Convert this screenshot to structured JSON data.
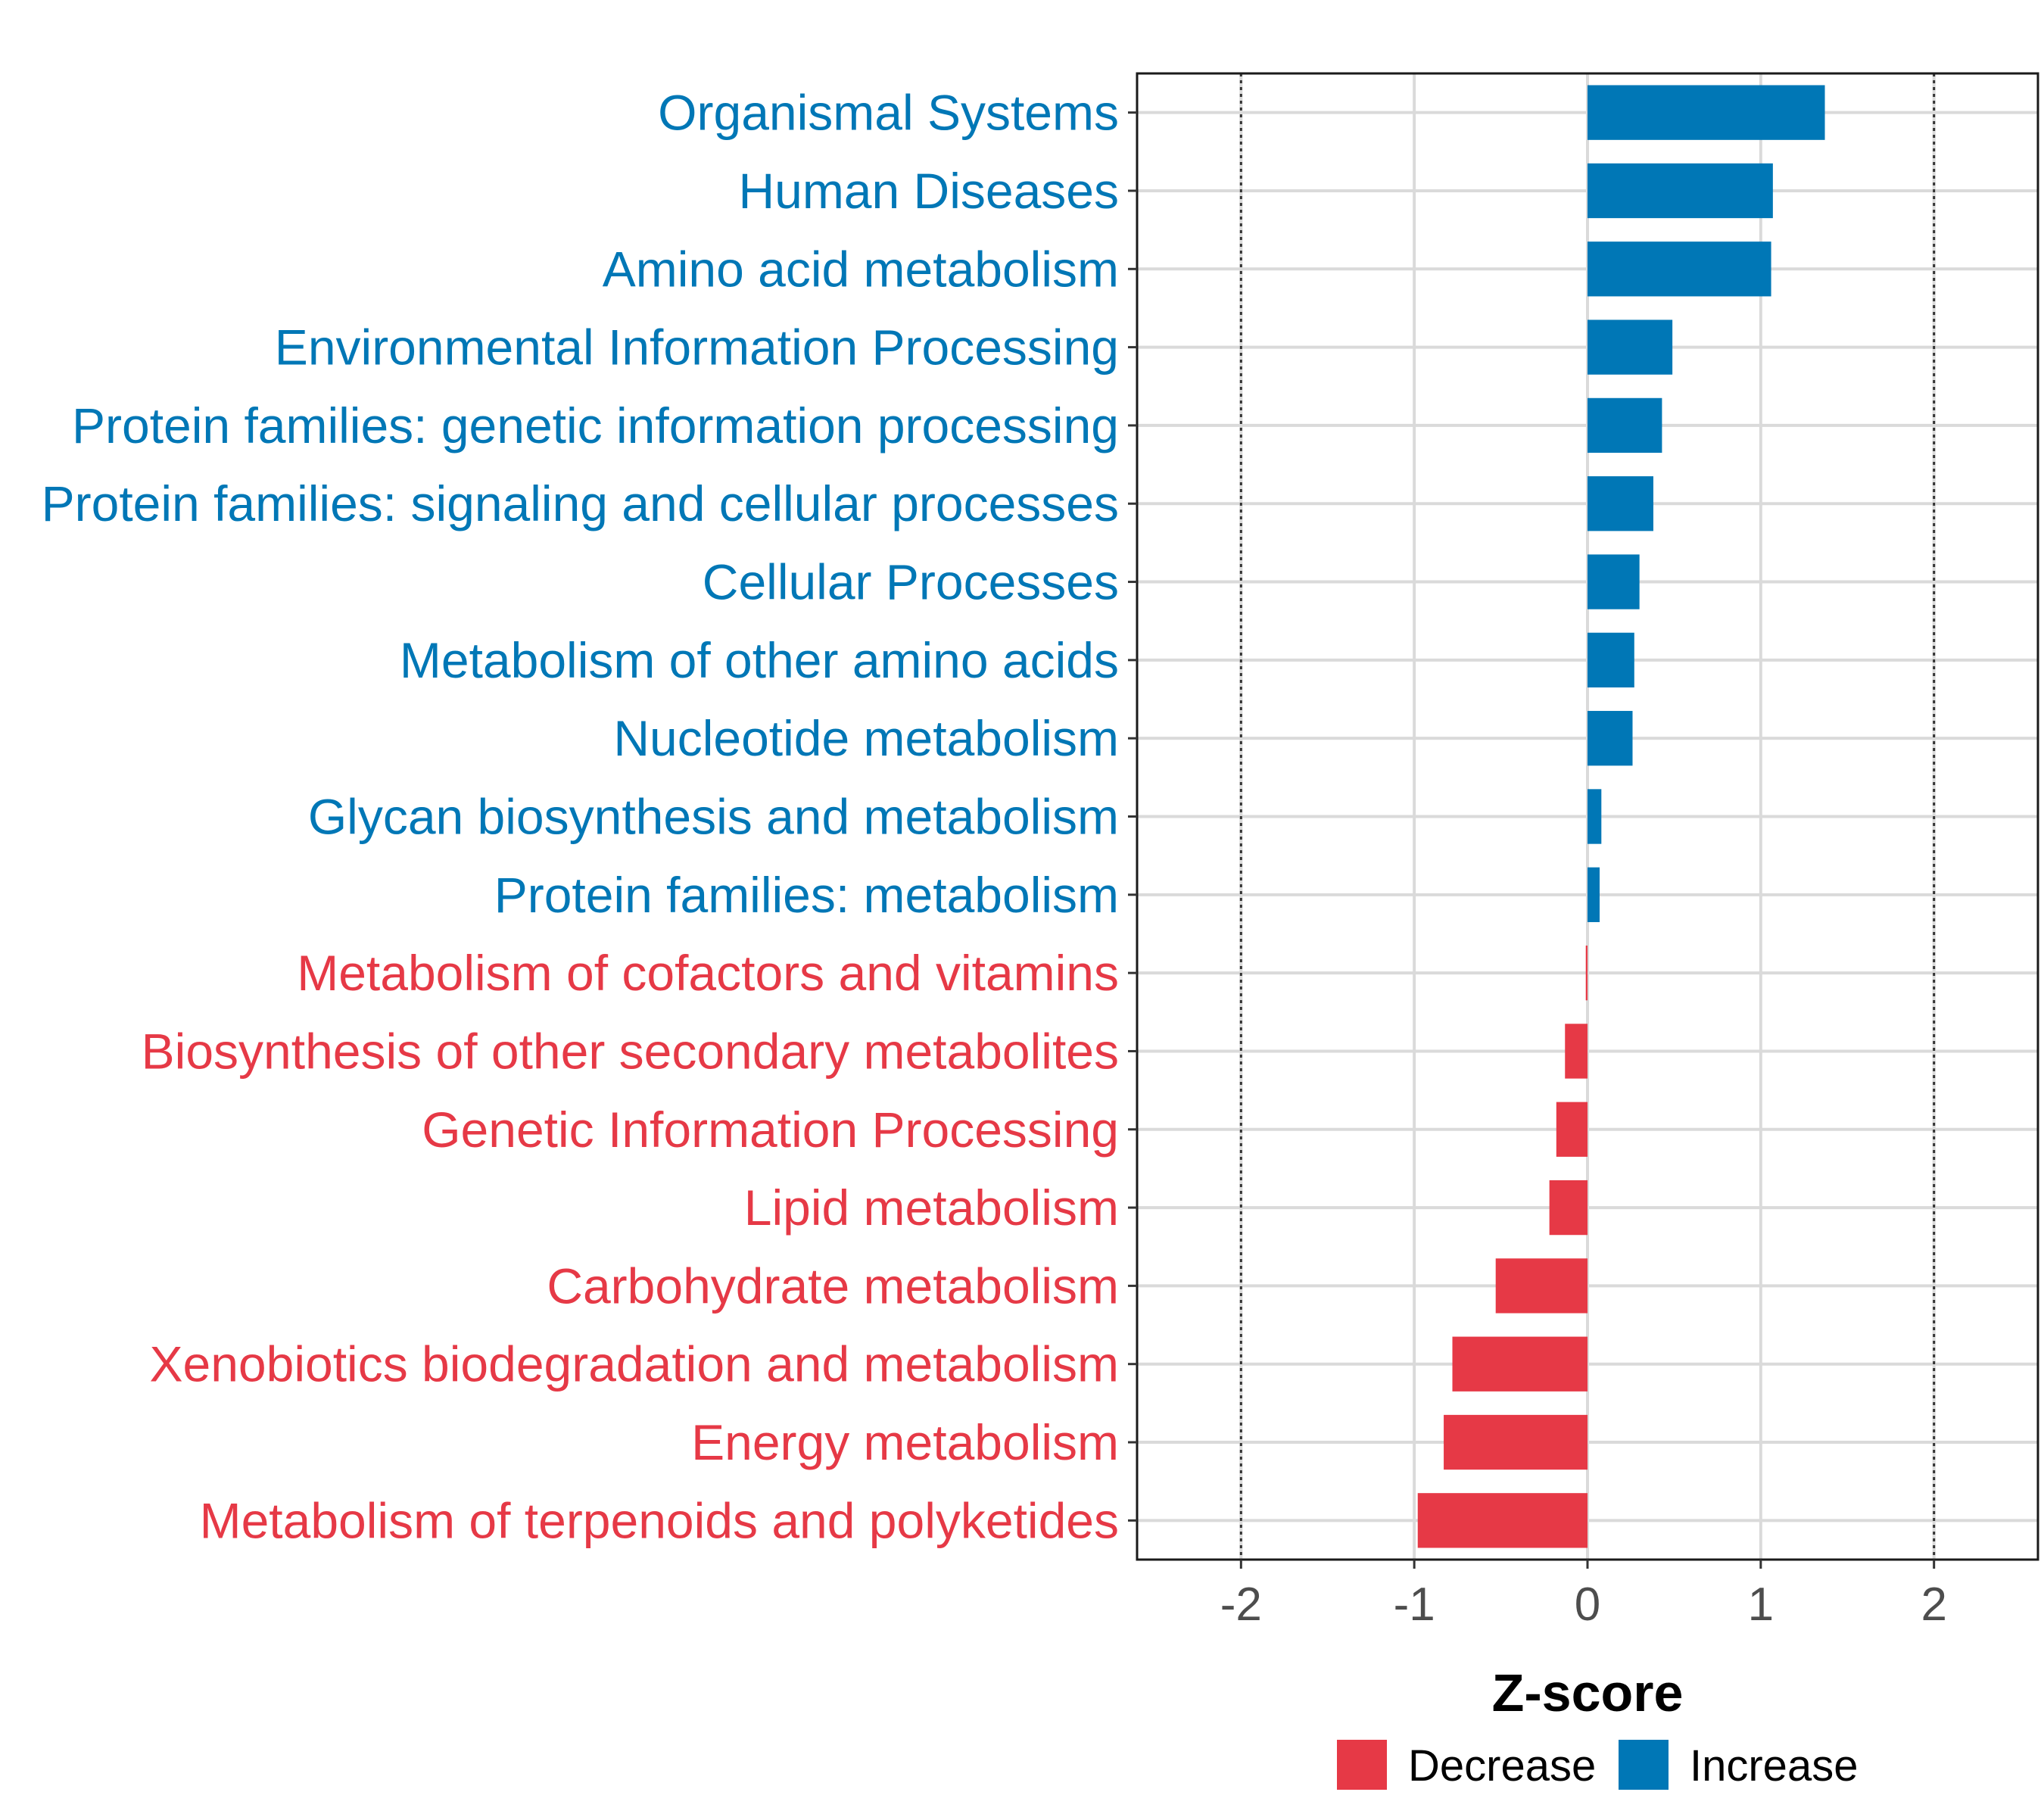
{
  "chart_data": {
    "type": "bar",
    "orientation": "horizontal",
    "title": "",
    "xlabel": "Z-score",
    "ylabel": "",
    "xlim": [
      -2.6,
      2.6
    ],
    "xticks": [
      "-2",
      "-1",
      "0",
      "1",
      "2"
    ],
    "reference_lines": [
      -2,
      2
    ],
    "grid": true,
    "colors": {
      "Decrease": "#e63946",
      "Increase": "#0077b6"
    },
    "categories": [
      "Organismal Systems",
      "Human Diseases",
      "Amino acid metabolism",
      "Environmental Information Processing",
      "Protein families: genetic information processing",
      "Protein families: signaling and cellular processes",
      "Cellular Processes",
      "Metabolism of other amino acids",
      "Nucleotide metabolism",
      "Glycan biosynthesis and metabolism",
      "Protein families: metabolism",
      "Metabolism of cofactors and vitamins",
      "Biosynthesis of other secondary metabolites",
      "Genetic Information Processing",
      "Lipid metabolism",
      "Carbohydrate metabolism",
      "Xenobiotics biodegradation and metabolism",
      "Energy metabolism",
      "Metabolism of terpenoids and polyketides"
    ],
    "values": [
      1.37,
      1.07,
      1.06,
      0.49,
      0.43,
      0.38,
      0.3,
      0.27,
      0.26,
      0.08,
      0.07,
      -0.01,
      -0.13,
      -0.18,
      -0.22,
      -0.53,
      -0.78,
      -0.83,
      -0.98
    ],
    "groups": [
      "Increase",
      "Increase",
      "Increase",
      "Increase",
      "Increase",
      "Increase",
      "Increase",
      "Increase",
      "Increase",
      "Increase",
      "Increase",
      "Decrease",
      "Decrease",
      "Decrease",
      "Decrease",
      "Decrease",
      "Decrease",
      "Decrease",
      "Decrease"
    ],
    "legend": {
      "position": "bottom",
      "entries": [
        "Decrease",
        "Increase"
      ]
    }
  }
}
